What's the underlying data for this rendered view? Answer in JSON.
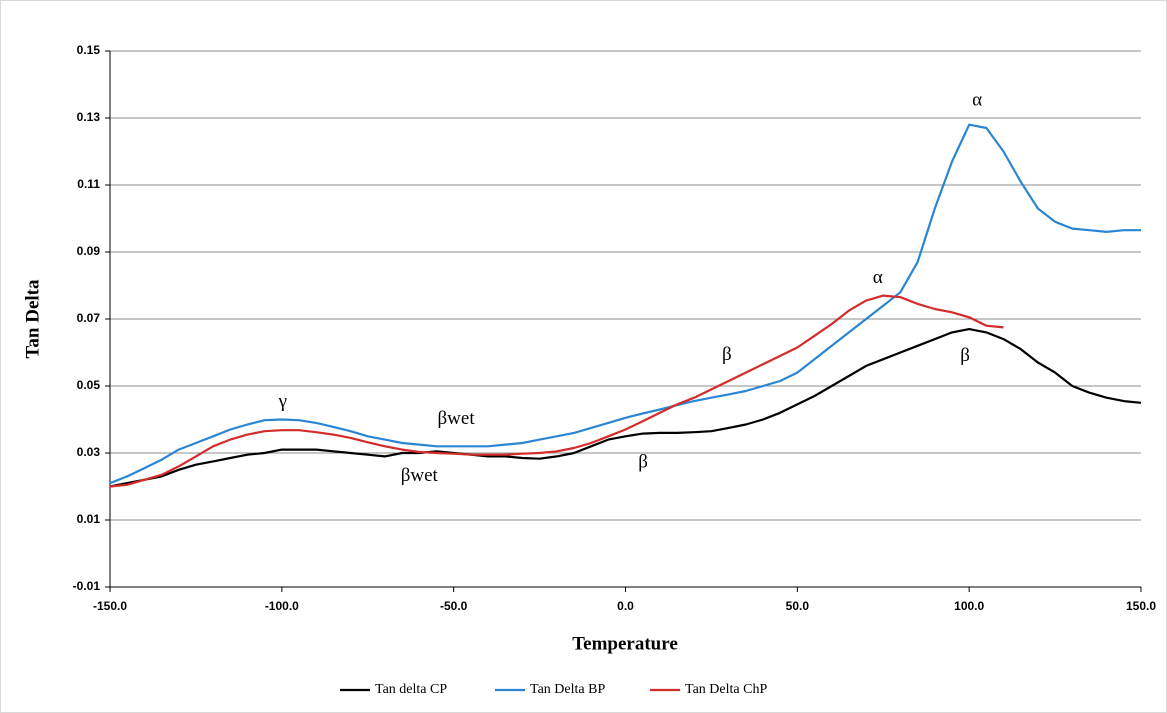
{
  "chart_data": {
    "type": "line",
    "x_label": "Temperature",
    "y_label": "Tan Delta",
    "x": [
      -150,
      -145,
      -140,
      -135,
      -130,
      -125,
      -120,
      -115,
      -110,
      -105,
      -100,
      -95,
      -90,
      -85,
      -80,
      -75,
      -70,
      -65,
      -60,
      -55,
      -50,
      -45,
      -40,
      -35,
      -30,
      -25,
      -20,
      -15,
      -10,
      -5,
      0,
      5,
      10,
      15,
      20,
      25,
      30,
      35,
      40,
      45,
      50,
      55,
      60,
      65,
      70,
      75,
      80,
      85,
      90,
      95,
      100,
      105,
      110,
      115,
      120,
      125,
      130,
      135,
      140,
      145,
      150
    ],
    "series": [
      {
        "name": "Tan delta CP",
        "color": "#000000",
        "values": [
          0.02,
          0.021,
          0.022,
          0.023,
          0.025,
          0.0265,
          0.0275,
          0.0285,
          0.0295,
          0.03,
          0.031,
          0.031,
          0.031,
          0.0305,
          0.03,
          0.0295,
          0.029,
          0.03,
          0.03,
          0.0305,
          0.03,
          0.0295,
          0.029,
          0.029,
          0.0285,
          0.0283,
          0.029,
          0.03,
          0.032,
          0.034,
          0.035,
          0.0358,
          0.036,
          0.036,
          0.0362,
          0.0365,
          0.0375,
          0.0385,
          0.04,
          0.042,
          0.0445,
          0.047,
          0.05,
          0.053,
          0.056,
          0.058,
          0.06,
          0.062,
          0.064,
          0.066,
          0.067,
          0.066,
          0.064,
          0.061,
          0.057,
          0.054,
          0.05,
          0.048,
          0.0465,
          0.0455,
          0.045
        ]
      },
      {
        "name": "Tan Delta BP",
        "color": "#2a86d2",
        "values": [
          0.021,
          0.023,
          0.0255,
          0.028,
          0.031,
          0.033,
          0.035,
          0.037,
          0.0385,
          0.0398,
          0.04,
          0.0398,
          0.039,
          0.0378,
          0.0365,
          0.035,
          0.034,
          0.033,
          0.0325,
          0.032,
          0.032,
          0.032,
          0.032,
          0.0325,
          0.033,
          0.034,
          0.035,
          0.036,
          0.0375,
          0.039,
          0.0405,
          0.0418,
          0.043,
          0.0443,
          0.0455,
          0.0465,
          0.0475,
          0.0485,
          0.05,
          0.0515,
          0.054,
          0.058,
          0.062,
          0.066,
          0.07,
          0.074,
          0.078,
          0.087,
          0.103,
          0.117,
          0.128,
          0.127,
          0.12,
          0.111,
          0.103,
          0.099,
          0.097,
          0.0965,
          0.096,
          0.0965,
          0.0965
        ]
      },
      {
        "name": "Tan Delta ChP",
        "color": "#d42b2b",
        "values": [
          0.02,
          0.0205,
          0.022,
          0.0235,
          0.026,
          0.029,
          0.032,
          0.034,
          0.0355,
          0.0365,
          0.0368,
          0.0368,
          0.0362,
          0.0355,
          0.0345,
          0.0332,
          0.032,
          0.031,
          0.0303,
          0.03,
          0.0298,
          0.0295,
          0.0295,
          0.0295,
          0.0298,
          0.03,
          0.0305,
          0.0315,
          0.033,
          0.035,
          0.037,
          0.0395,
          0.042,
          0.0445,
          0.0465,
          0.049,
          0.0515,
          0.054,
          0.0565,
          0.059,
          0.0615,
          0.065,
          0.0685,
          0.0725,
          0.0755,
          0.077,
          0.0765,
          0.0745,
          0.073,
          0.072,
          0.0705,
          0.068,
          0.0675,
          null,
          null,
          null,
          null,
          null,
          null,
          null,
          null
        ]
      }
    ],
    "xlim": [
      -150,
      150
    ],
    "xticks": [
      {
        "value": -150,
        "label": "-150.0"
      },
      {
        "value": -100,
        "label": "-100.0"
      },
      {
        "value": -50,
        "label": "-50.0"
      },
      {
        "value": 0,
        "label": "0.0"
      },
      {
        "value": 50,
        "label": "50.0"
      },
      {
        "value": 100,
        "label": "100.0"
      },
      {
        "value": 150,
        "label": "150.0"
      }
    ],
    "ylim": [
      -0.01,
      0.15
    ],
    "yticks": [
      -0.01,
      0.01,
      0.03,
      0.05,
      0.07,
      0.09,
      0.11,
      0.13,
      0.15
    ],
    "grid": true,
    "legend": "bottom",
    "annotations": [
      {
        "text": "γ",
        "x": -99.7,
        "y": 0.045
      },
      {
        "text": "βwet",
        "x": -49.3,
        "y": 0.04
      },
      {
        "text": "βwet",
        "x": -60,
        "y": 0.023
      },
      {
        "text": "β",
        "x": 5.1,
        "y": 0.027
      },
      {
        "text": "β",
        "x": 29.5,
        "y": 0.059
      },
      {
        "text": "α",
        "x": 73.4,
        "y": 0.082
      },
      {
        "text": "α",
        "x": 102.3,
        "y": 0.135
      },
      {
        "text": "β",
        "x": 98.8,
        "y": 0.0587
      }
    ]
  }
}
